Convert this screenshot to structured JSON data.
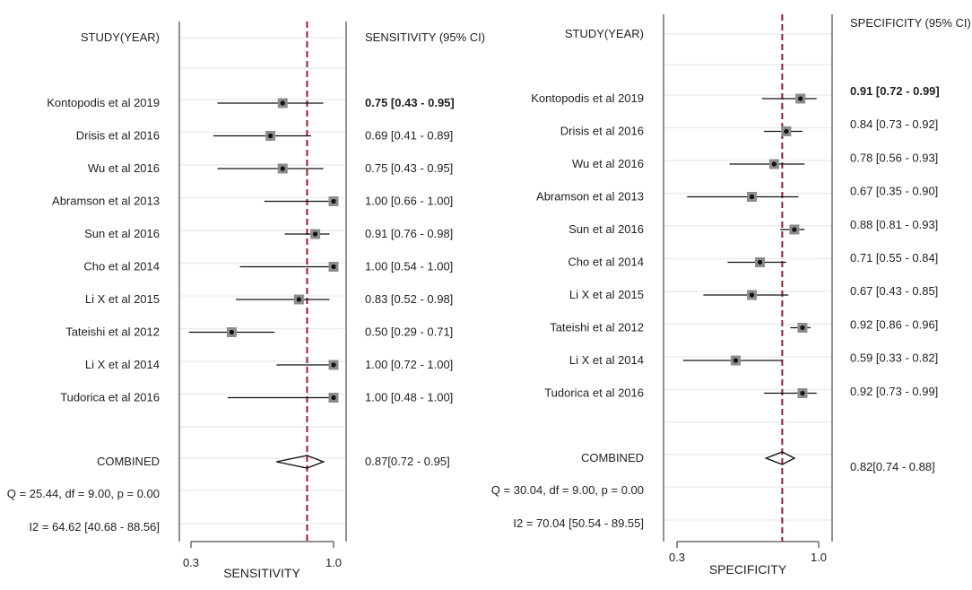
{
  "chart_data": [
    {
      "type": "forest",
      "study_header": "STUDY(YEAR)",
      "ci_header": "SENSITIVITY (95% CI)",
      "xlabel": "SENSITIVITY",
      "xlim": [
        0.3,
        1.0
      ],
      "x_ticks": [
        "0.3",
        "1.0"
      ],
      "reference_line": 0.87,
      "studies": [
        {
          "label": "Kontopodis et al 2019",
          "est": 0.75,
          "lo": 0.43,
          "hi": 0.95,
          "ci_text": "0.75 [0.43 - 0.95]",
          "bold": true
        },
        {
          "label": "Drisis et al 2016",
          "est": 0.69,
          "lo": 0.41,
          "hi": 0.89,
          "ci_text": "0.69 [0.41 - 0.89]",
          "bold": false
        },
        {
          "label": "Wu et al 2016",
          "est": 0.75,
          "lo": 0.43,
          "hi": 0.95,
          "ci_text": "0.75 [0.43 - 0.95]",
          "bold": false
        },
        {
          "label": "Abramson et al 2013",
          "est": 1.0,
          "lo": 0.66,
          "hi": 1.0,
          "ci_text": "1.00 [0.66 - 1.00]",
          "bold": false
        },
        {
          "label": "Sun et al 2016",
          "est": 0.91,
          "lo": 0.76,
          "hi": 0.98,
          "ci_text": "0.91 [0.76 - 0.98]",
          "bold": false
        },
        {
          "label": "Cho et al 2014",
          "est": 1.0,
          "lo": 0.54,
          "hi": 1.0,
          "ci_text": "1.00 [0.54 - 1.00]",
          "bold": false
        },
        {
          "label": "Li X et al  2015",
          "est": 0.83,
          "lo": 0.52,
          "hi": 0.98,
          "ci_text": "0.83 [0.52 - 0.98]",
          "bold": false
        },
        {
          "label": "Tateishi et al 2012",
          "est": 0.5,
          "lo": 0.29,
          "hi": 0.71,
          "ci_text": "0.50 [0.29 - 0.71]",
          "bold": false
        },
        {
          "label": "Li X et al  2014",
          "est": 1.0,
          "lo": 0.72,
          "hi": 1.0,
          "ci_text": "1.00 [0.72 - 1.00]",
          "bold": false
        },
        {
          "label": "Tudorica et al 2016",
          "est": 1.0,
          "lo": 0.48,
          "hi": 1.0,
          "ci_text": "1.00 [0.48 - 1.00]",
          "bold": false
        }
      ],
      "combined": {
        "label": "COMBINED",
        "est": 0.87,
        "lo": 0.72,
        "hi": 0.95,
        "ci_text": "0.87[0.72 - 0.95]"
      },
      "heterogeneity_q": "Q = 25.44, df = 9.00, p =  0.00",
      "heterogeneity_i2": "I2 = 64.62 [40.68 - 88.56]"
    },
    {
      "type": "forest",
      "study_header": "STUDY(YEAR)",
      "ci_header": "SPECIFICITY (95% CI)",
      "xlabel": "SPECIFICITY",
      "xlim": [
        0.3,
        1.0
      ],
      "x_ticks": [
        "0.3",
        "1.0"
      ],
      "reference_line": 0.82,
      "studies": [
        {
          "label": "Kontopodis et al 2019",
          "est": 0.91,
          "lo": 0.72,
          "hi": 0.99,
          "ci_text": "0.91 [0.72 - 0.99]",
          "bold": true
        },
        {
          "label": "Drisis et al 2016",
          "est": 0.84,
          "lo": 0.73,
          "hi": 0.92,
          "ci_text": "0.84 [0.73 - 0.92]",
          "bold": false
        },
        {
          "label": "Wu et al 2016",
          "est": 0.78,
          "lo": 0.56,
          "hi": 0.93,
          "ci_text": "0.78 [0.56 - 0.93]",
          "bold": false
        },
        {
          "label": "Abramson et al 2013",
          "est": 0.67,
          "lo": 0.35,
          "hi": 0.9,
          "ci_text": "0.67 [0.35 - 0.90]",
          "bold": false
        },
        {
          "label": "Sun et al 2016",
          "est": 0.88,
          "lo": 0.81,
          "hi": 0.93,
          "ci_text": "0.88 [0.81 - 0.93]",
          "bold": false
        },
        {
          "label": "Cho et al 2014",
          "est": 0.71,
          "lo": 0.55,
          "hi": 0.84,
          "ci_text": "0.71 [0.55 - 0.84]",
          "bold": false
        },
        {
          "label": "Li X et al  2015",
          "est": 0.67,
          "lo": 0.43,
          "hi": 0.85,
          "ci_text": "0.67 [0.43 - 0.85]",
          "bold": false
        },
        {
          "label": "Tateishi et al 2012",
          "est": 0.92,
          "lo": 0.86,
          "hi": 0.96,
          "ci_text": "0.92 [0.86 - 0.96]",
          "bold": false
        },
        {
          "label": "Li X et al  2014",
          "est": 0.59,
          "lo": 0.33,
          "hi": 0.82,
          "ci_text": "0.59 [0.33 - 0.82]",
          "bold": false
        },
        {
          "label": "Tudorica et al 2016",
          "est": 0.92,
          "lo": 0.73,
          "hi": 0.99,
          "ci_text": "0.92 [0.73 - 0.99]",
          "bold": false
        }
      ],
      "combined": {
        "label": "COMBINED",
        "est": 0.82,
        "lo": 0.74,
        "hi": 0.88,
        "ci_text": "0.82[0.74 - 0.88]"
      },
      "heterogeneity_q": "Q = 30.04, df = 9.00, p =  0.00",
      "heterogeneity_i2": "I2 = 70.04 [50.54 - 89.55]"
    }
  ],
  "colors": {
    "background": "#ffffff",
    "gridline": "#e8eef1",
    "frame": "#222222",
    "reference_line": "#a01830",
    "marker_box": "#8c8c8c",
    "marker_center": "#111111",
    "ci_line": "#111111",
    "diamond": "#111111",
    "text": "#222222"
  }
}
